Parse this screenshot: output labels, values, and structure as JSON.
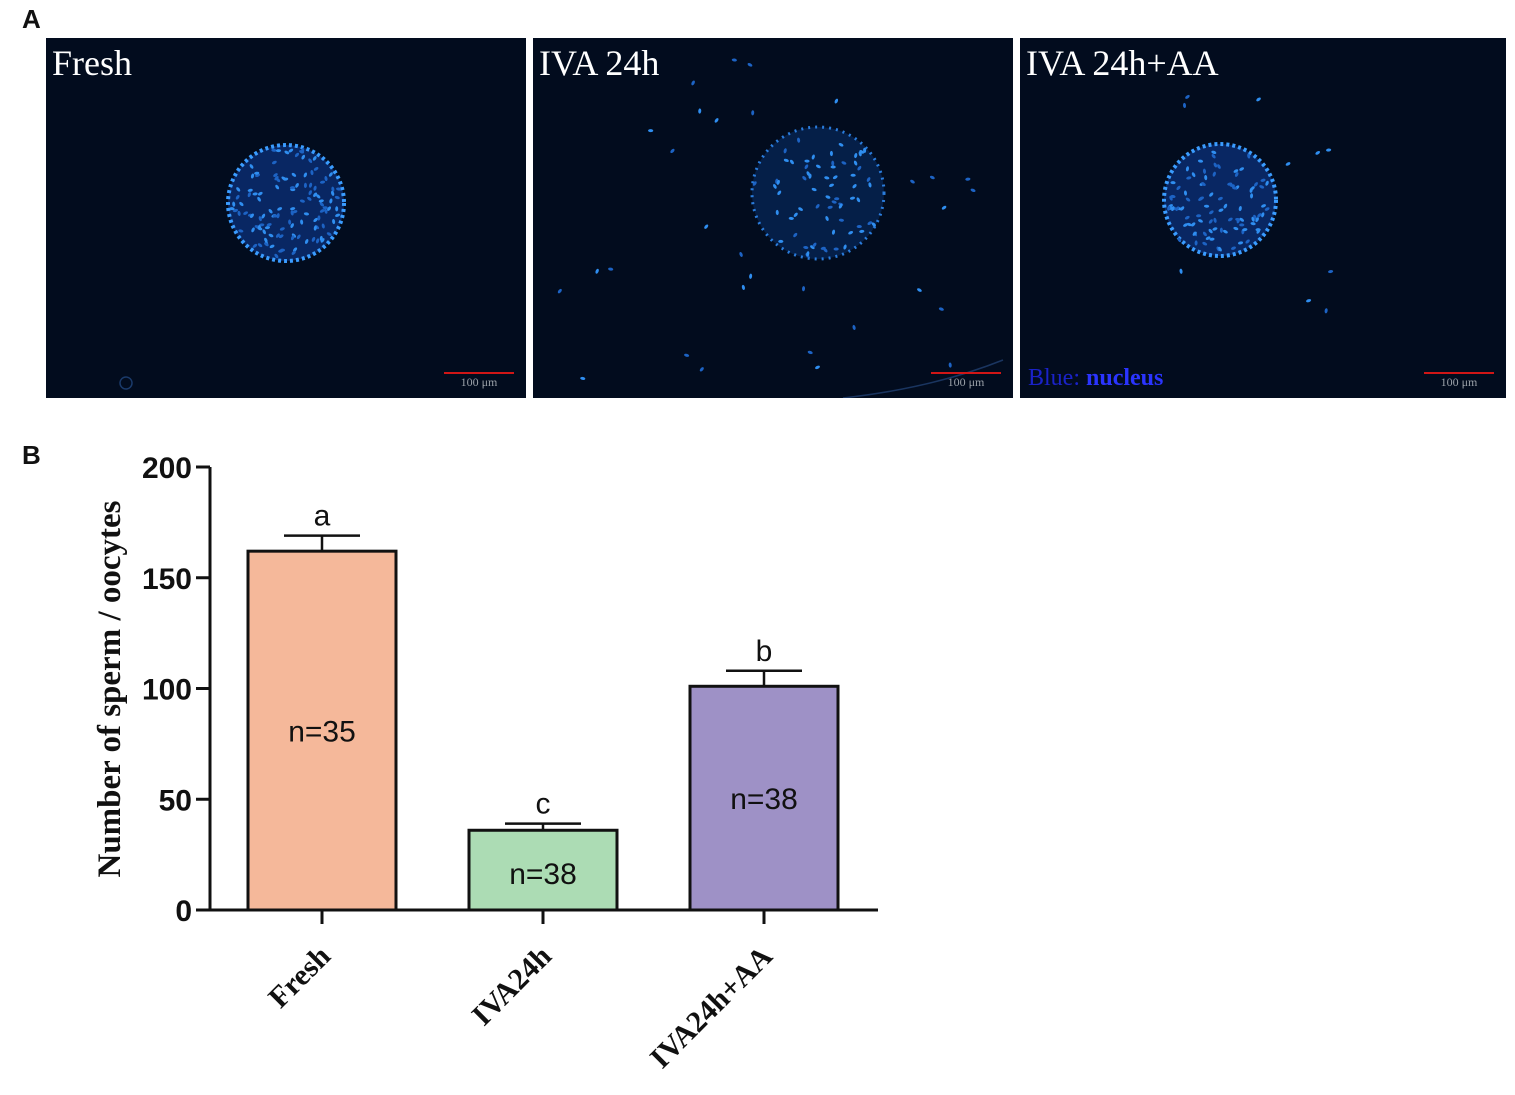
{
  "panel_a": {
    "letter": "A",
    "images": [
      {
        "label": "Fresh",
        "scale": "100 μm"
      },
      {
        "label": "IVA 24h",
        "scale": "100 μm"
      },
      {
        "label": "IVA 24h+AA",
        "scale": "100 μm",
        "stain_key": "Blue:",
        "stain_value": "nucleus"
      }
    ]
  },
  "panel_b": {
    "letter": "B"
  },
  "chart_data": {
    "type": "bar",
    "categories": [
      "Fresh",
      "IVA24h",
      "IVA24h+AA"
    ],
    "values": [
      162,
      36,
      101
    ],
    "errors": [
      7,
      3,
      7
    ],
    "significance": [
      "a",
      "c",
      "b"
    ],
    "n_labels": [
      "n=35",
      "n=38",
      "n=38"
    ],
    "colors": [
      "#f5b89a",
      "#acdcb4",
      "#9e91c6"
    ],
    "ylabel": "Number of sperm / oocytes",
    "xlabel": "",
    "ylim": [
      0,
      200
    ],
    "yticks": [
      0,
      50,
      100,
      150,
      200
    ],
    "grid": false
  }
}
